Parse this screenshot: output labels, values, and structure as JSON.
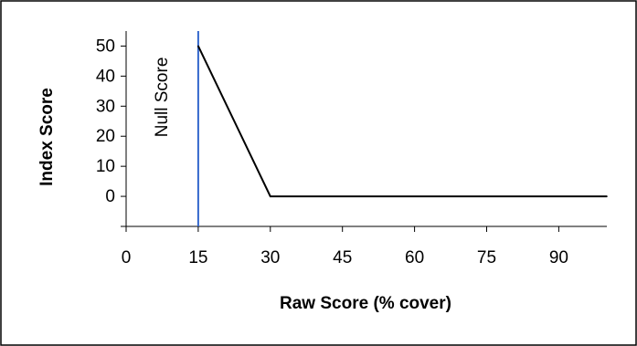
{
  "chart_data": {
    "type": "line",
    "title": "",
    "xlabel": "Raw Score (% cover)",
    "ylabel": "Index Score",
    "xlim": [
      0,
      100
    ],
    "ylim": [
      -10,
      55
    ],
    "x_ticks": [
      0,
      15,
      30,
      45,
      60,
      75,
      90
    ],
    "y_ticks": [
      0,
      10,
      20,
      30,
      40,
      50
    ],
    "grid": false,
    "legend": "none",
    "series": [
      {
        "color": "#000000",
        "points": [
          {
            "x": 15,
            "y": 50
          },
          {
            "x": 30,
            "y": 0
          },
          {
            "x": 100,
            "y": 0
          }
        ]
      }
    ],
    "reference_lines": [
      {
        "axis": "x",
        "value": 15,
        "label": "Null Score",
        "color": "#3366cc"
      }
    ]
  }
}
